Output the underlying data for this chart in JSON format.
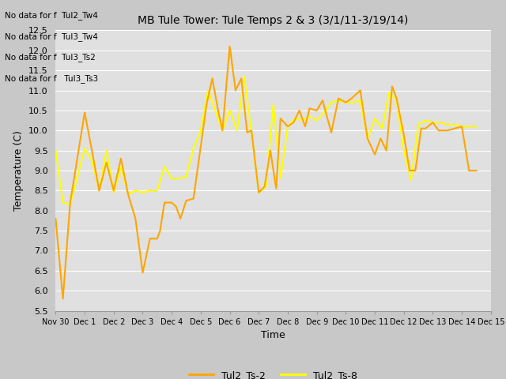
{
  "title": "MB Tule Tower: Tule Temps 2 & 3 (3/1/11-3/19/14)",
  "xlabel": "Time",
  "ylabel": "Temperature (C)",
  "ylim": [
    5.5,
    12.5
  ],
  "fig_bg_color": "#c8c8c8",
  "plot_bg_color": "#e0e0e0",
  "line1_color": "#FFA500",
  "line2_color": "#FFFF00",
  "line1_label": "Tul2_Ts-2",
  "line2_label": "Tul2_Ts-8",
  "no_data_texts": [
    "No data for f  Tul2_Tw4",
    "No data for f  Tul3_Tw4",
    "No data for f  Tul3_Ts2",
    "No data for f   Tul3_Ts3"
  ],
  "x_tick_labels": [
    "Nov 30",
    "Dec 1",
    "Dec 2",
    "Dec 3",
    "Dec 4",
    "Dec 5",
    "Dec 6",
    "Dec 7",
    "Dec 8",
    "Dec 9",
    "Dec 10",
    "Dec 11",
    "Dec 12",
    "Dec 13",
    "Dec 14",
    "Dec 15"
  ],
  "ts2_x": [
    0.0,
    0.25,
    0.5,
    1.0,
    1.25,
    1.5,
    1.75,
    2.0,
    2.25,
    2.5,
    2.75,
    3.0,
    3.25,
    3.5,
    3.6,
    3.75,
    4.0,
    4.15,
    4.3,
    4.5,
    4.75,
    5.0,
    5.2,
    5.4,
    5.6,
    5.75,
    6.0,
    6.2,
    6.4,
    6.6,
    6.75,
    7.0,
    7.2,
    7.4,
    7.6,
    7.75,
    8.0,
    8.2,
    8.4,
    8.6,
    8.75,
    9.0,
    9.2,
    9.5,
    9.75,
    10.0,
    10.2,
    10.5,
    10.75,
    11.0,
    11.2,
    11.4,
    11.6,
    11.75,
    12.0,
    12.2,
    12.4,
    12.6,
    12.75,
    13.0,
    13.2,
    13.5,
    13.75,
    14.0,
    14.25,
    14.5
  ],
  "ts2_y": [
    7.8,
    5.8,
    8.2,
    10.45,
    9.5,
    8.5,
    9.2,
    8.5,
    9.3,
    8.4,
    7.8,
    6.45,
    7.3,
    7.3,
    7.5,
    8.2,
    8.2,
    8.1,
    7.8,
    8.25,
    8.3,
    9.6,
    10.65,
    11.3,
    10.5,
    10.0,
    12.1,
    11.0,
    11.3,
    9.95,
    10.0,
    8.45,
    8.6,
    9.5,
    8.55,
    10.3,
    10.1,
    10.2,
    10.5,
    10.1,
    10.55,
    10.5,
    10.75,
    9.95,
    10.8,
    10.7,
    10.8,
    11.0,
    9.8,
    9.4,
    9.8,
    9.5,
    11.1,
    10.8,
    9.9,
    9.0,
    9.0,
    10.05,
    10.05,
    10.2,
    10.0,
    10.0,
    10.05,
    10.1,
    9.0,
    9.0
  ],
  "ts8_x": [
    0.0,
    0.25,
    0.5,
    1.0,
    1.25,
    1.5,
    1.75,
    2.0,
    2.25,
    2.5,
    2.75,
    3.0,
    3.25,
    3.5,
    3.75,
    4.0,
    4.25,
    4.5,
    4.75,
    5.0,
    5.25,
    5.5,
    5.75,
    6.0,
    6.25,
    6.5,
    6.75,
    7.0,
    7.25,
    7.5,
    7.75,
    8.0,
    8.25,
    8.5,
    8.75,
    9.0,
    9.25,
    9.5,
    9.75,
    10.0,
    10.25,
    10.5,
    10.75,
    11.0,
    11.25,
    11.5,
    11.75,
    12.0,
    12.25,
    12.5,
    12.75,
    13.0,
    13.25,
    13.5,
    13.75,
    14.0,
    14.25,
    14.5
  ],
  "ts8_y": [
    9.5,
    8.2,
    8.15,
    9.55,
    9.25,
    8.5,
    9.5,
    8.45,
    9.1,
    8.4,
    8.5,
    8.45,
    8.5,
    8.5,
    9.1,
    8.8,
    8.8,
    8.85,
    9.55,
    10.0,
    11.0,
    10.5,
    10.0,
    10.5,
    10.0,
    11.35,
    9.95,
    8.45,
    8.6,
    10.65,
    8.8,
    10.1,
    10.3,
    10.25,
    10.35,
    10.25,
    10.45,
    10.7,
    10.75,
    10.7,
    10.7,
    10.75,
    9.8,
    10.3,
    10.05,
    10.95,
    10.75,
    9.5,
    8.75,
    10.15,
    10.25,
    10.2,
    10.2,
    10.15,
    10.15,
    10.1,
    10.1,
    10.1
  ]
}
